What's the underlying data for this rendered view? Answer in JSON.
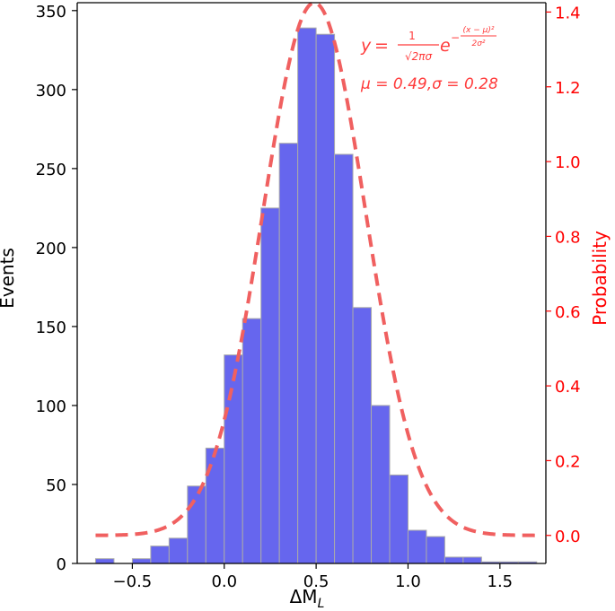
{
  "chart_data": {
    "type": "bar",
    "title": "",
    "xlabel": "ΔM",
    "xlabel_sub": "L",
    "ylabel": "Events",
    "y2label": "Probability",
    "xlim": [
      -0.8,
      1.75
    ],
    "ylim": [
      0,
      355
    ],
    "y2lim": [
      -0.075,
      1.425
    ],
    "x_ticks": [
      -0.5,
      0.0,
      0.5,
      1.0,
      1.5
    ],
    "x_tick_labels": [
      "−0.5",
      "0.0",
      "0.5",
      "1.0",
      "1.5"
    ],
    "y_ticks": [
      0,
      50,
      100,
      150,
      200,
      250,
      300,
      350
    ],
    "y_tick_labels": [
      "0",
      "50",
      "100",
      "150",
      "200",
      "250",
      "300",
      "350"
    ],
    "y2_ticks": [
      0.0,
      0.2,
      0.4,
      0.6,
      0.8,
      1.0,
      1.2,
      1.4
    ],
    "y2_tick_labels": [
      "0.0",
      "0.2",
      "0.4",
      "0.6",
      "0.8",
      "1.0",
      "1.2",
      "1.4"
    ],
    "grid": false,
    "bin_width": 0.1,
    "bin_starts": [
      -0.7,
      -0.6,
      -0.5,
      -0.4,
      -0.3,
      -0.2,
      -0.1,
      0.0,
      0.1,
      0.2,
      0.3,
      0.4,
      0.5,
      0.6,
      0.7,
      0.8,
      0.9,
      1.0,
      1.1,
      1.2,
      1.3,
      1.4,
      1.5,
      1.6
    ],
    "values": [
      3,
      0,
      3,
      11,
      16,
      49,
      73,
      132,
      155,
      225,
      266,
      339,
      335,
      259,
      162,
      100,
      56,
      21,
      17,
      4,
      4,
      1,
      1,
      1
    ],
    "fit": {
      "name": "Gaussian fit",
      "mu": 0.49,
      "sigma": 0.28,
      "x_start": -0.7,
      "x_end": 1.7,
      "axis": "y2"
    },
    "annotation": {
      "formula_lhs": "y",
      "formula_eq": "=",
      "frac_num": "1",
      "frac_den": "√2πσ",
      "exp_base": "e",
      "exp_minus": "−",
      "exp_num": "(x − μ)²",
      "exp_den": "2σ²",
      "params": "μ = 0.49,σ = 0.28"
    },
    "colors": {
      "bar_fill": "#6666ee",
      "bar_edge": "#aaaaaa",
      "fit_line": "#f06060",
      "secondary_axis": "#ff0000",
      "text": "#000000"
    }
  }
}
